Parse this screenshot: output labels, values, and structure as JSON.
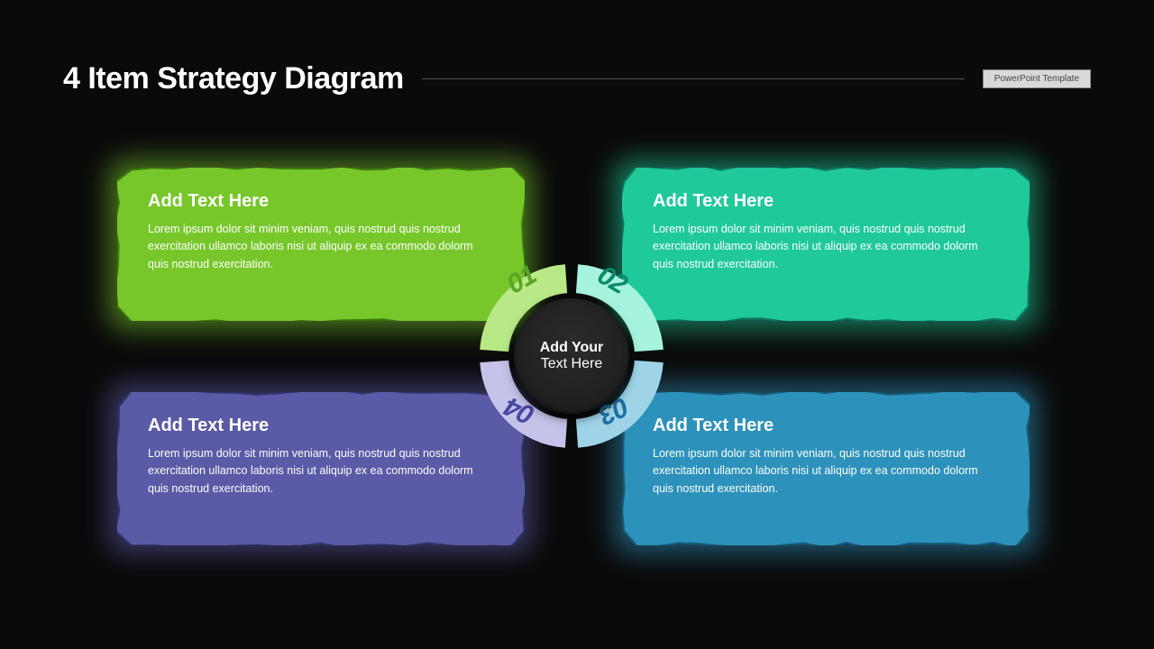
{
  "header": {
    "title": "4 Item Strategy Diagram",
    "badge": "PowerPoint Template"
  },
  "background_color": "#0a0a0a",
  "hub": {
    "line1": "Add Your",
    "line2": "Text Here",
    "center_bg": "#222222",
    "segments": [
      {
        "number": "01",
        "arc_color": "#b8e986",
        "num_color": "#5aa526",
        "pos": "tl"
      },
      {
        "number": "02",
        "arc_color": "#a6f4df",
        "num_color": "#0a8a6b",
        "pos": "tr"
      },
      {
        "number": "03",
        "arc_color": "#9fd4e8",
        "num_color": "#1f6fa3",
        "pos": "br"
      },
      {
        "number": "04",
        "arc_color": "#c5c3ea",
        "num_color": "#4a49a0",
        "pos": "bl"
      }
    ]
  },
  "cards": [
    {
      "pos": "top-left",
      "title": "Add Text Here",
      "body": "Lorem ipsum dolor sit minim veniam, quis nostrud quis nostrud exercitation ullamco laboris nisi ut aliquip ex ea commodo dolorm quis nostrud exercitation.",
      "bg": "#77c72a",
      "glow": "#77c72a",
      "stroke": "#3d7a10"
    },
    {
      "pos": "top-right",
      "title": "Add Text Here",
      "body": "Lorem ipsum dolor sit minim veniam, quis nostrud quis nostrud exercitation ullamco laboris nisi ut aliquip ex ea commodo dolorm quis nostrud exercitation.",
      "bg": "#1fc99a",
      "glow": "#1fc99a",
      "stroke": "#0d7a5c"
    },
    {
      "pos": "bot-left",
      "title": "Add Text Here",
      "body": "Lorem ipsum dolor sit minim veniam, quis nostrud quis nostrud exercitation ullamco laboris nisi ut aliquip ex ea commodo dolorm quis nostrud exercitation.",
      "bg": "#5a5aa6",
      "glow": "#5a5aa6",
      "stroke": "#33336b"
    },
    {
      "pos": "bot-right",
      "title": "Add Text Here",
      "body": "Lorem ipsum dolor sit minim veniam, quis nostrud quis nostrud exercitation ullamco laboris nisi ut aliquip ex ea commodo dolorm quis nostrud exercitation.",
      "bg": "#2d92bb",
      "glow": "#2d92bb",
      "stroke": "#175c79"
    }
  ],
  "typography": {
    "title_fontsize": 34,
    "card_title_fontsize": 20,
    "card_body_fontsize": 12.5,
    "hub_fontsize": 16,
    "seg_num_fontsize": 30
  }
}
